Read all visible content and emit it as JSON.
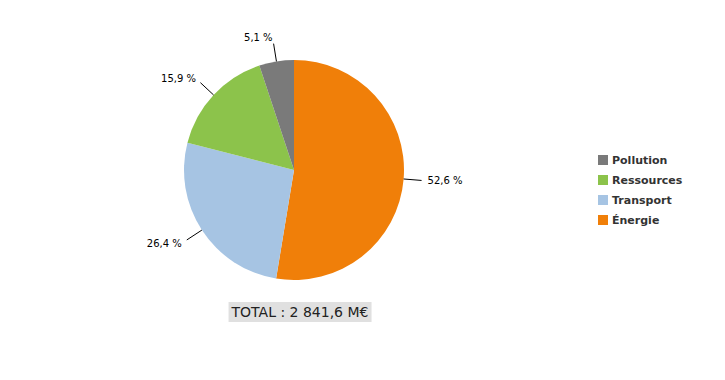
{
  "chart_data": {
    "type": "pie",
    "categories": [
      "Énergie",
      "Transport",
      "Ressources",
      "Pollution"
    ],
    "values": [
      52.6,
      26.4,
      15.9,
      5.1
    ],
    "value_labels": [
      "52,6 %",
      "26,4 %",
      "15,9 %",
      "5,1 %"
    ],
    "colors": [
      "#f07f09",
      "#a6c4e3",
      "#8cc34b",
      "#7a7a7a"
    ],
    "data_labels": true,
    "legend": "right",
    "annotation": "TOTAL : 2 841,6 M€"
  }
}
